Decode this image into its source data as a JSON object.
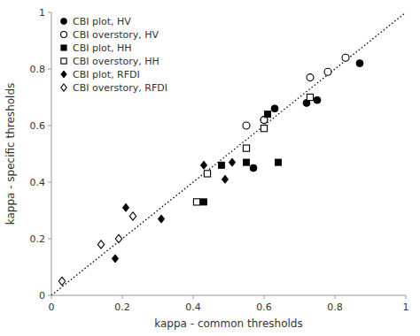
{
  "chart_data": {
    "type": "scatter",
    "xlabel": "kappa - common thresholds",
    "ylabel": "kappa - specific thresholds",
    "xlim": [
      0.0,
      1.0
    ],
    "ylim": [
      0.0,
      1.0
    ],
    "xticks": [
      0.0,
      {
        "value": 0.2,
        "label": "0.2"
      },
      {
        "value": 0.4,
        "label": "0.4"
      },
      {
        "value": 0.6,
        "label": "0.6"
      },
      {
        "value": 0.8,
        "label": "0.8"
      },
      1.0
    ],
    "yticks": [
      0.0,
      {
        "value": 0.2,
        "label": "0.2"
      },
      {
        "value": 0.4,
        "label": "0.4"
      },
      {
        "value": 0.6,
        "label": "0.6"
      },
      {
        "value": 0.8,
        "label": "0.8"
      },
      1.0
    ],
    "grid": false,
    "legend": "top-left",
    "series": [
      {
        "name": "CBI plot, HV",
        "marker": "circle",
        "color": "black",
        "x": [
          0.57,
          0.6,
          0.63,
          0.72,
          0.75,
          0.87
        ],
        "values": [
          0.45,
          0.62,
          0.66,
          0.68,
          0.69,
          0.82
        ]
      },
      {
        "name": "CBI overstory, HV",
        "marker": "circle-open",
        "color": "black",
        "x": [
          0.55,
          0.6,
          0.73,
          0.78,
          0.83
        ],
        "values": [
          0.6,
          0.62,
          0.77,
          0.79,
          0.84
        ]
      },
      {
        "name": "CBI plot, HH",
        "marker": "square",
        "color": "black",
        "x": [
          0.43,
          0.48,
          0.55,
          0.61,
          0.64
        ],
        "values": [
          0.33,
          0.46,
          0.47,
          0.64,
          0.47
        ]
      },
      {
        "name": "CBI overstory, HH",
        "marker": "square-open",
        "color": "black",
        "x": [
          0.41,
          0.44,
          0.55,
          0.6,
          0.73
        ],
        "values": [
          0.33,
          0.43,
          0.52,
          0.59,
          0.7
        ]
      },
      {
        "name": "CBI plot, RFDI",
        "marker": "diamond",
        "color": "black",
        "x": [
          0.18,
          0.21,
          0.31,
          0.43,
          0.49,
          0.51
        ],
        "values": [
          0.13,
          0.31,
          0.27,
          0.46,
          0.41,
          0.47
        ]
      },
      {
        "name": "CBI overstory, RFDI",
        "marker": "diamond-open",
        "color": "black",
        "x": [
          0.03,
          0.14,
          0.19,
          0.23
        ],
        "values": [
          0.05,
          0.18,
          0.2,
          0.28
        ]
      },
      {
        "type": "line",
        "line_style": "dotted",
        "color": "black",
        "x": [
          0.0,
          1.0
        ],
        "values": [
          0.0,
          1.0
        ]
      }
    ]
  }
}
